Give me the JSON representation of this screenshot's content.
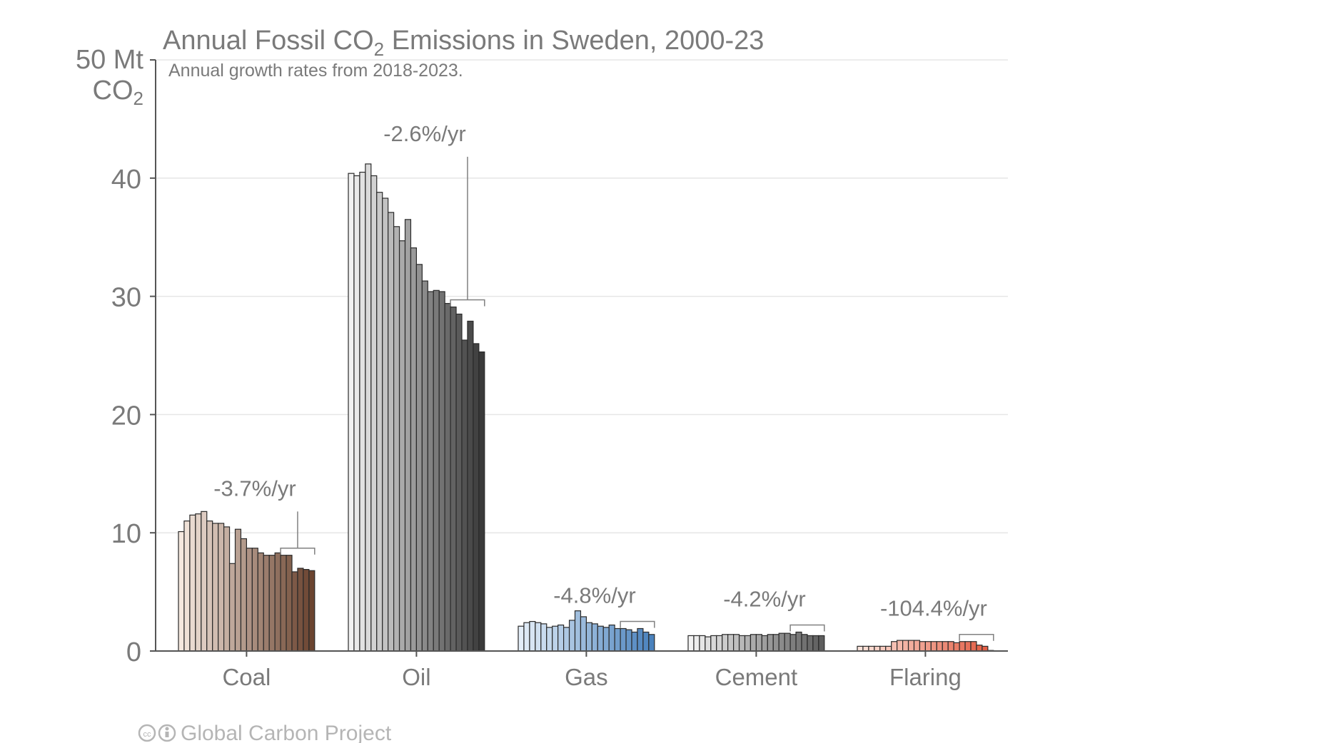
{
  "title_prefix": "Annual Fossil CO",
  "title_sub": "2",
  "title_suffix": " Emissions in Sweden, 2000-23",
  "subtitle": "Annual growth rates from 2018-2023.",
  "y_unit_line1": "50 Mt",
  "y_unit_line2_prefix": "CO",
  "y_unit_line2_sub": "2",
  "credit": "Global Carbon Project",
  "credit_icon": "creative-commons-by-icon",
  "chart_data": {
    "type": "bar",
    "title": "Annual Fossil CO2 Emissions in Sweden, 2000-23",
    "subtitle": "Annual growth rates from 2018-2023.",
    "ylabel": "50 Mt CO2",
    "ylim": [
      0,
      50
    ],
    "yticks": [
      0,
      10,
      20,
      30,
      40
    ],
    "grid": true,
    "years": [
      2000,
      2023
    ],
    "groups": [
      {
        "name": "Coal",
        "growth_rate": "-3.7%/yr",
        "color_light": "#f5e8df",
        "color_dark": "#6b4430",
        "values": [
          10.1,
          11.0,
          11.5,
          11.6,
          11.8,
          11.0,
          10.8,
          10.8,
          10.5,
          7.4,
          10.3,
          9.5,
          8.7,
          8.7,
          8.3,
          8.1,
          8.1,
          8.3,
          8.1,
          8.1,
          6.7,
          7.0,
          6.9,
          6.8
        ]
      },
      {
        "name": "Oil",
        "growth_rate": "-2.6%/yr",
        "color_light": "#f2f2f2",
        "color_dark": "#3a3a3a",
        "values": [
          40.4,
          40.2,
          40.5,
          41.2,
          40.2,
          38.8,
          38.3,
          37.1,
          35.9,
          34.7,
          36.5,
          34.1,
          32.7,
          31.3,
          30.4,
          30.5,
          30.4,
          29.4,
          29.1,
          28.5,
          26.3,
          27.9,
          26.0,
          25.3
        ]
      },
      {
        "name": "Gas",
        "growth_rate": "-4.8%/yr",
        "color_light": "#e4eef8",
        "color_dark": "#4a82bd",
        "values": [
          2.1,
          2.4,
          2.5,
          2.4,
          2.3,
          2.0,
          2.1,
          2.2,
          2.0,
          2.6,
          3.4,
          2.9,
          2.4,
          2.3,
          2.1,
          2.0,
          2.2,
          1.9,
          1.9,
          1.8,
          1.6,
          1.9,
          1.6,
          1.4
        ]
      },
      {
        "name": "Cement",
        "growth_rate": "-4.2%/yr",
        "color_light": "#f2f2f2",
        "color_dark": "#5e5e5e",
        "values": [
          1.3,
          1.3,
          1.3,
          1.2,
          1.3,
          1.3,
          1.4,
          1.4,
          1.4,
          1.3,
          1.3,
          1.4,
          1.4,
          1.3,
          1.4,
          1.4,
          1.5,
          1.5,
          1.4,
          1.6,
          1.4,
          1.3,
          1.3,
          1.3
        ]
      },
      {
        "name": "Flaring",
        "growth_rate": "-104.4%/yr",
        "color_light": "#fde3da",
        "color_dark": "#e2593f",
        "values": [
          0.4,
          0.4,
          0.4,
          0.4,
          0.4,
          0.4,
          0.8,
          0.9,
          0.9,
          0.9,
          0.9,
          0.8,
          0.8,
          0.8,
          0.8,
          0.8,
          0.8,
          0.7,
          0.8,
          0.8,
          0.8,
          0.5,
          0.4,
          0.0
        ]
      }
    ]
  }
}
